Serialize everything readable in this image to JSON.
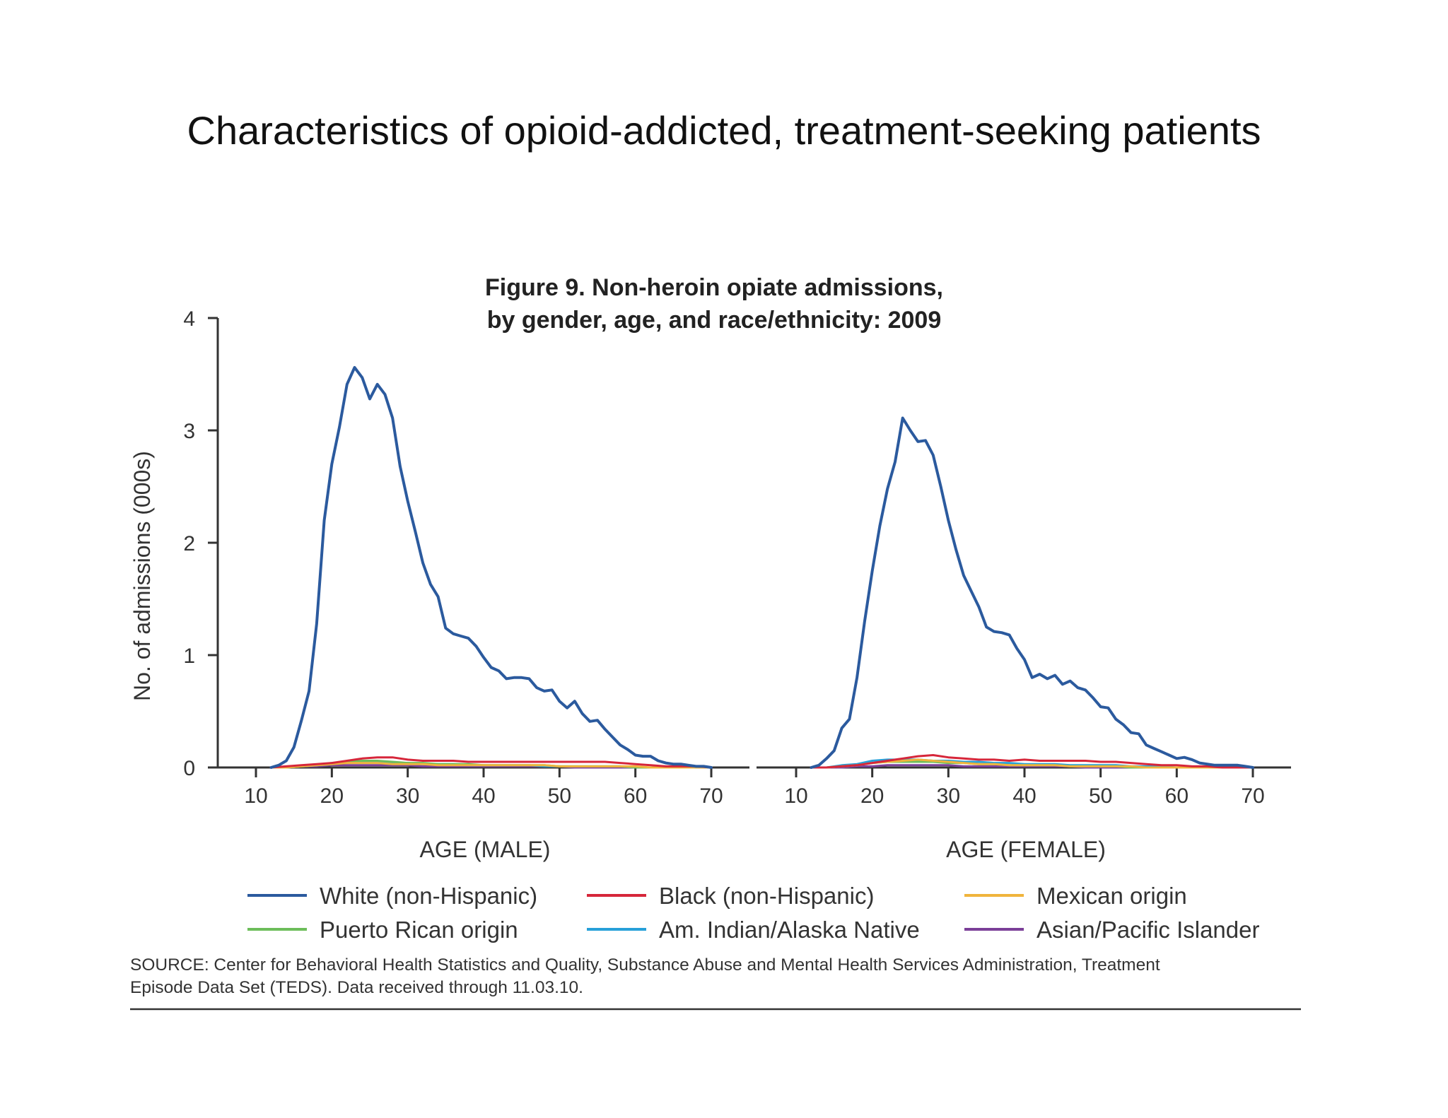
{
  "slide_title": "Characteristics of opioid-addicted, treatment-seeking patients",
  "chart_data": {
    "type": "line",
    "title_lines": [
      "Figure 9. Non-heroin opiate admissions,",
      "by gender, age, and race/ethnicity: 2009"
    ],
    "ylabel": "No. of admissions (000s)",
    "ylim": [
      0,
      4
    ],
    "yticks": [
      "0",
      "1",
      "2",
      "3",
      "4"
    ],
    "xlim": [
      10,
      70
    ],
    "xticks": [
      "10",
      "20",
      "30",
      "40",
      "50",
      "60",
      "70"
    ],
    "grid": false,
    "legend_position": "bottom",
    "series_colors": {
      "white": "#2b5a9e",
      "black": "#d6263a",
      "mexican": "#f0b43c",
      "puerto_rican": "#6cbd5a",
      "am_indian": "#27a0d8",
      "asian": "#7b3f98"
    },
    "legend": [
      {
        "key": "white",
        "label": "White (non-Hispanic)"
      },
      {
        "key": "black",
        "label": "Black (non-Hispanic)"
      },
      {
        "key": "mexican",
        "label": "Mexican origin"
      },
      {
        "key": "puerto_rican",
        "label": "Puerto Rican origin"
      },
      {
        "key": "am_indian",
        "label": "Am. Indian/Alaska Native"
      },
      {
        "key": "asian",
        "label": "Asian/Pacific Islander"
      }
    ],
    "panels": [
      {
        "xlabel": "AGE (MALE)",
        "series": [
          {
            "key": "white",
            "x": [
              12,
              13,
              14,
              15,
              16,
              17,
              18,
              19,
              20,
              21,
              22,
              23,
              24,
              25,
              26,
              27,
              28,
              29,
              30,
              31,
              32,
              33,
              34,
              35,
              36,
              37,
              38,
              39,
              40,
              41,
              42,
              43,
              44,
              45,
              46,
              47,
              48,
              49,
              50,
              51,
              52,
              53,
              54,
              55,
              56,
              57,
              58,
              59,
              60,
              61,
              62,
              63,
              64,
              65,
              66,
              67,
              68,
              69,
              70
            ],
            "y": [
              0,
              0.02,
              0.06,
              0.18,
              0.42,
              0.68,
              1.28,
              2.2,
              2.7,
              3.03,
              3.41,
              3.56,
              3.47,
              3.28,
              3.41,
              3.32,
              3.11,
              2.68,
              2.37,
              2.1,
              1.82,
              1.63,
              1.52,
              1.24,
              1.19,
              1.17,
              1.15,
              1.08,
              0.98,
              0.89,
              0.86,
              0.79,
              0.8,
              0.8,
              0.79,
              0.71,
              0.68,
              0.69,
              0.59,
              0.53,
              0.59,
              0.48,
              0.41,
              0.42,
              0.34,
              0.27,
              0.2,
              0.16,
              0.11,
              0.1,
              0.1,
              0.06,
              0.04,
              0.03,
              0.03,
              0.02,
              0.01,
              0.01,
              0
            ]
          },
          {
            "key": "black",
            "x": [
              12,
              14,
              16,
              18,
              20,
              22,
              24,
              26,
              28,
              30,
              32,
              34,
              36,
              38,
              40,
              42,
              44,
              46,
              48,
              50,
              52,
              54,
              56,
              58,
              60,
              62,
              64,
              66,
              68,
              70
            ],
            "y": [
              0,
              0.01,
              0.02,
              0.03,
              0.04,
              0.06,
              0.08,
              0.09,
              0.09,
              0.07,
              0.06,
              0.06,
              0.06,
              0.05,
              0.05,
              0.05,
              0.05,
              0.05,
              0.05,
              0.05,
              0.05,
              0.05,
              0.05,
              0.04,
              0.03,
              0.02,
              0.01,
              0.01,
              0.01,
              0
            ]
          },
          {
            "key": "mexican",
            "x": [
              12,
              14,
              16,
              18,
              20,
              22,
              24,
              26,
              28,
              30,
              32,
              34,
              36,
              38,
              40,
              42,
              44,
              46,
              48,
              50,
              52,
              54,
              56,
              58,
              60,
              62,
              64,
              66,
              68,
              70
            ],
            "y": [
              0,
              0,
              0.01,
              0.02,
              0.03,
              0.04,
              0.04,
              0.04,
              0.03,
              0.03,
              0.03,
              0.02,
              0.02,
              0.02,
              0.02,
              0.02,
              0.02,
              0.02,
              0.02,
              0.01,
              0.01,
              0.01,
              0.01,
              0.01,
              0.01,
              0,
              0,
              0,
              0,
              0
            ]
          },
          {
            "key": "puerto_rican",
            "x": [
              12,
              14,
              16,
              18,
              20,
              22,
              24,
              26,
              28,
              30,
              32,
              34,
              36,
              38,
              40,
              42,
              44,
              46,
              48,
              50,
              52,
              54,
              56,
              58,
              60,
              62,
              64,
              66,
              68,
              70
            ],
            "y": [
              0,
              0,
              0.01,
              0.02,
              0.03,
              0.05,
              0.06,
              0.06,
              0.05,
              0.04,
              0.04,
              0.03,
              0.03,
              0.03,
              0.02,
              0.02,
              0.02,
              0.02,
              0.02,
              0.01,
              0.01,
              0.01,
              0.01,
              0.01,
              0,
              0,
              0,
              0,
              0,
              0
            ]
          },
          {
            "key": "am_indian",
            "x": [
              12,
              14,
              16,
              18,
              20,
              22,
              24,
              26,
              28,
              30,
              32,
              34,
              36,
              38,
              40,
              42,
              44,
              46,
              48,
              50,
              52,
              54,
              56,
              58,
              60,
              62,
              64,
              66,
              68,
              70
            ],
            "y": [
              0,
              0,
              0.01,
              0.02,
              0.04,
              0.05,
              0.05,
              0.05,
              0.04,
              0.04,
              0.03,
              0.03,
              0.03,
              0.02,
              0.02,
              0.02,
              0.02,
              0.02,
              0.01,
              0.01,
              0.01,
              0.01,
              0.01,
              0.01,
              0,
              0,
              0,
              0,
              0,
              0
            ]
          },
          {
            "key": "asian",
            "x": [
              12,
              14,
              16,
              18,
              20,
              22,
              24,
              26,
              28,
              30,
              32,
              34,
              36,
              38,
              40,
              42,
              44,
              46,
              48,
              50,
              52,
              54,
              56,
              58,
              60,
              62,
              64,
              66,
              68,
              70
            ],
            "y": [
              0,
              0,
              0.01,
              0.01,
              0.02,
              0.02,
              0.02,
              0.02,
              0.02,
              0.02,
              0.01,
              0.01,
              0.01,
              0.01,
              0.01,
              0.01,
              0.01,
              0.01,
              0.01,
              0.01,
              0,
              0,
              0,
              0,
              0,
              0,
              0,
              0,
              0,
              0
            ]
          }
        ]
      },
      {
        "xlabel": "AGE (FEMALE)",
        "series": [
          {
            "key": "white",
            "x": [
              12,
              13,
              14,
              15,
              16,
              17,
              18,
              19,
              20,
              21,
              22,
              23,
              24,
              25,
              26,
              27,
              28,
              29,
              30,
              31,
              32,
              33,
              34,
              35,
              36,
              37,
              38,
              39,
              40,
              41,
              42,
              43,
              44,
              45,
              46,
              47,
              48,
              49,
              50,
              51,
              52,
              53,
              54,
              55,
              56,
              57,
              58,
              59,
              60,
              61,
              62,
              63,
              64,
              65,
              66,
              67,
              68,
              69,
              70
            ],
            "y": [
              0,
              0.02,
              0.08,
              0.15,
              0.35,
              0.43,
              0.8,
              1.3,
              1.75,
              2.15,
              2.48,
              2.72,
              3.11,
              3.0,
              2.9,
              2.91,
              2.78,
              2.5,
              2.2,
              1.94,
              1.71,
              1.57,
              1.43,
              1.25,
              1.21,
              1.2,
              1.18,
              1.06,
              0.96,
              0.8,
              0.83,
              0.79,
              0.82,
              0.74,
              0.77,
              0.71,
              0.69,
              0.62,
              0.54,
              0.53,
              0.43,
              0.38,
              0.31,
              0.3,
              0.2,
              0.17,
              0.14,
              0.11,
              0.08,
              0.09,
              0.07,
              0.04,
              0.03,
              0.02,
              0.02,
              0.02,
              0.02,
              0.01,
              0
            ]
          },
          {
            "key": "black",
            "x": [
              12,
              14,
              16,
              18,
              20,
              22,
              24,
              26,
              28,
              30,
              32,
              34,
              36,
              38,
              40,
              42,
              44,
              46,
              48,
              50,
              52,
              54,
              56,
              58,
              60,
              62,
              64,
              66,
              68,
              70
            ],
            "y": [
              0,
              0,
              0.01,
              0.02,
              0.04,
              0.06,
              0.08,
              0.1,
              0.11,
              0.09,
              0.08,
              0.07,
              0.07,
              0.06,
              0.07,
              0.06,
              0.06,
              0.06,
              0.06,
              0.05,
              0.05,
              0.04,
              0.03,
              0.02,
              0.02,
              0.01,
              0.01,
              0,
              0,
              0
            ]
          },
          {
            "key": "mexican",
            "x": [
              12,
              14,
              16,
              18,
              20,
              22,
              24,
              26,
              28,
              30,
              32,
              34,
              36,
              38,
              40,
              42,
              44,
              46,
              48,
              50,
              52,
              54,
              56,
              58,
              60,
              62,
              64,
              66,
              68,
              70
            ],
            "y": [
              0,
              0,
              0.01,
              0.02,
              0.04,
              0.05,
              0.06,
              0.07,
              0.06,
              0.05,
              0.04,
              0.03,
              0.03,
              0.02,
              0.02,
              0.02,
              0.02,
              0.01,
              0.01,
              0.01,
              0.01,
              0.01,
              0,
              0,
              0,
              0,
              0,
              0,
              0,
              0
            ]
          },
          {
            "key": "puerto_rican",
            "x": [
              12,
              14,
              16,
              18,
              20,
              22,
              24,
              26,
              28,
              30,
              32,
              34,
              36,
              38,
              40,
              42,
              44,
              46,
              48,
              50,
              52,
              54,
              56,
              58,
              60,
              62,
              64,
              66,
              68,
              70
            ],
            "y": [
              0,
              0,
              0.01,
              0.02,
              0.04,
              0.05,
              0.05,
              0.05,
              0.05,
              0.04,
              0.04,
              0.03,
              0.03,
              0.02,
              0.02,
              0.02,
              0.02,
              0.01,
              0.01,
              0.01,
              0.01,
              0,
              0,
              0,
              0,
              0,
              0,
              0,
              0,
              0
            ]
          },
          {
            "key": "am_indian",
            "x": [
              12,
              14,
              16,
              18,
              20,
              22,
              24,
              26,
              28,
              30,
              32,
              34,
              36,
              38,
              40,
              42,
              44,
              46,
              48,
              50,
              52,
              54,
              56,
              58,
              60,
              62,
              64,
              66,
              68,
              70
            ],
            "y": [
              0,
              0,
              0.02,
              0.03,
              0.06,
              0.07,
              0.07,
              0.07,
              0.06,
              0.06,
              0.05,
              0.05,
              0.04,
              0.04,
              0.03,
              0.03,
              0.03,
              0.02,
              0.02,
              0.02,
              0.02,
              0.01,
              0.01,
              0.01,
              0,
              0,
              0,
              0,
              0,
              0
            ]
          },
          {
            "key": "asian",
            "x": [
              12,
              14,
              16,
              18,
              20,
              22,
              24,
              26,
              28,
              30,
              32,
              34,
              36,
              38,
              40,
              42,
              44,
              46,
              48,
              50,
              52,
              54,
              56,
              58,
              60,
              62,
              64,
              66,
              68,
              70
            ],
            "y": [
              0,
              0,
              0,
              0.01,
              0.01,
              0.02,
              0.02,
              0.02,
              0.02,
              0.02,
              0.01,
              0.01,
              0.01,
              0.01,
              0.01,
              0.01,
              0.01,
              0.01,
              0,
              0,
              0,
              0,
              0,
              0,
              0,
              0,
              0,
              0,
              0,
              0
            ]
          }
        ]
      }
    ],
    "source_lines": [
      "SOURCE: Center for Behavioral Health Statistics and Quality, Substance Abuse and Mental Health Services Administration, Treatment",
      "Episode Data Set (TEDS). Data received through 11.03.10."
    ]
  }
}
